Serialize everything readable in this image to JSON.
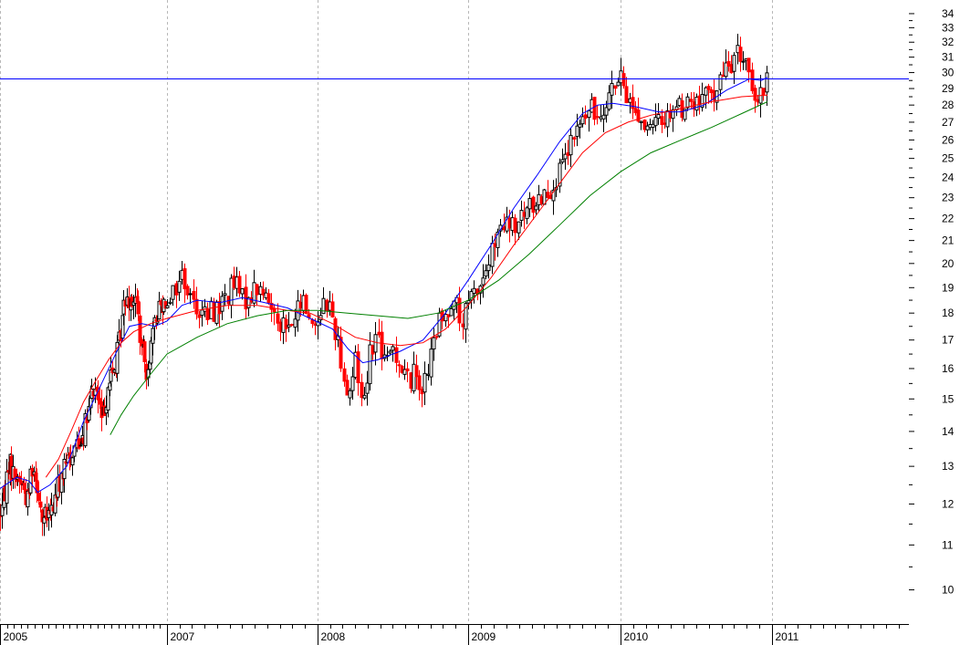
{
  "chart_data": {
    "type": "candlestick",
    "y_scale": "log",
    "ylim": [
      9.3,
      35
    ],
    "y_ticks": [
      10,
      11,
      12,
      13,
      14,
      15,
      16,
      17,
      18,
      19,
      20,
      21,
      22,
      23,
      24,
      25,
      26,
      27,
      28,
      29,
      30,
      31,
      32,
      33,
      34
    ],
    "y_tick_labels": [
      "10",
      "11",
      "12",
      "13",
      "14",
      "15",
      "16",
      "17",
      "18",
      "19",
      "20",
      "21",
      "22",
      "23",
      "24",
      "25",
      "26",
      "27",
      "28",
      "29",
      "30",
      "31",
      "32",
      "33",
      "34"
    ],
    "xlim": [
      2005.0,
      2011.9
    ],
    "x_ticks": [
      2005,
      2007,
      2008,
      2009,
      2010,
      2011
    ],
    "x_tick_labels": [
      "2005",
      "2007",
      "2008",
      "2009",
      "2010",
      "2011"
    ],
    "grid": {
      "vertical_dashed": true,
      "horizontal": false
    },
    "reference_line": {
      "value": 29.6,
      "color": "#0000ff"
    },
    "colors": {
      "up": "#000000",
      "down": "#ff0000",
      "ma_fast": "#0000ff",
      "ma_mid": "#ff0000",
      "ma_slow": "#008000",
      "grid": "#b8b8b8"
    },
    "price_path": [
      [
        2005.0,
        11.8
      ],
      [
        2005.05,
        12.2
      ],
      [
        2005.1,
        13.2
      ],
      [
        2005.15,
        12.8
      ],
      [
        2005.25,
        12.6
      ],
      [
        2005.33,
        12.1
      ],
      [
        2005.38,
        13.1
      ],
      [
        2005.45,
        12.5
      ],
      [
        2005.5,
        11.6
      ],
      [
        2005.6,
        11.7
      ],
      [
        2005.7,
        12.5
      ],
      [
        2005.8,
        13.1
      ],
      [
        2005.9,
        13.6
      ],
      [
        2006.0,
        14.0
      ],
      [
        2006.05,
        14.5
      ],
      [
        2006.1,
        15.2
      ],
      [
        2006.15,
        15.3
      ],
      [
        2006.22,
        14.3
      ],
      [
        2006.3,
        15.6
      ],
      [
        2006.38,
        16.0
      ],
      [
        2006.45,
        17.5
      ],
      [
        2006.5,
        18.7
      ],
      [
        2006.6,
        18.6
      ],
      [
        2006.65,
        18.1
      ],
      [
        2006.68,
        16.8
      ],
      [
        2006.75,
        16.0
      ],
      [
        2006.8,
        16.7
      ],
      [
        2006.85,
        17.5
      ],
      [
        2006.9,
        18.3
      ],
      [
        2006.97,
        18.5
      ],
      [
        2007.05,
        18.9
      ],
      [
        2007.1,
        19.6
      ],
      [
        2007.15,
        18.6
      ],
      [
        2007.25,
        17.9
      ],
      [
        2007.35,
        18.3
      ],
      [
        2007.45,
        19.2
      ],
      [
        2007.5,
        18.5
      ],
      [
        2007.6,
        19.0
      ],
      [
        2007.7,
        18.2
      ],
      [
        2007.8,
        17.3
      ],
      [
        2007.9,
        18.5
      ],
      [
        2007.97,
        17.5
      ],
      [
        2008.05,
        18.6
      ],
      [
        2008.1,
        17.8
      ],
      [
        2008.15,
        16.5
      ],
      [
        2008.2,
        15.0
      ],
      [
        2008.25,
        16.3
      ],
      [
        2008.3,
        14.8
      ],
      [
        2008.35,
        16.8
      ],
      [
        2008.4,
        17.2
      ],
      [
        2008.45,
        16.0
      ],
      [
        2008.5,
        16.8
      ],
      [
        2008.55,
        16.1
      ],
      [
        2008.6,
        15.6
      ],
      [
        2008.65,
        15.9
      ],
      [
        2008.7,
        15.3
      ],
      [
        2008.75,
        16.4
      ],
      [
        2008.8,
        17.6
      ],
      [
        2008.85,
        17.8
      ],
      [
        2008.9,
        18.9
      ],
      [
        2008.95,
        17.4
      ],
      [
        2009.0,
        18.3
      ],
      [
        2009.05,
        18.9
      ],
      [
        2009.1,
        19.4
      ],
      [
        2009.15,
        20.4
      ],
      [
        2009.2,
        21.2
      ],
      [
        2009.25,
        21.7
      ],
      [
        2009.3,
        21.5
      ],
      [
        2009.4,
        22.5
      ],
      [
        2009.5,
        23.3
      ],
      [
        2009.55,
        23.6
      ],
      [
        2009.6,
        24.2
      ],
      [
        2009.65,
        25.2
      ],
      [
        2009.7,
        26.3
      ],
      [
        2009.75,
        27.2
      ],
      [
        2009.8,
        27.7
      ],
      [
        2009.85,
        27.4
      ],
      [
        2009.9,
        28.4
      ],
      [
        2009.95,
        29.2
      ],
      [
        2010.0,
        29.4
      ],
      [
        2010.05,
        28.4
      ],
      [
        2010.1,
        27.6
      ],
      [
        2010.15,
        26.9
      ],
      [
        2010.2,
        26.3
      ],
      [
        2010.25,
        27.2
      ],
      [
        2010.3,
        27.3
      ],
      [
        2010.35,
        28.0
      ],
      [
        2010.4,
        27.8
      ],
      [
        2010.45,
        28.2
      ],
      [
        2010.5,
        28.0
      ],
      [
        2010.55,
        28.4
      ],
      [
        2010.6,
        28.7
      ],
      [
        2010.65,
        29.3
      ],
      [
        2010.7,
        30.4
      ],
      [
        2010.75,
        30.9
      ],
      [
        2010.8,
        31.2
      ],
      [
        2010.85,
        30.4
      ],
      [
        2010.88,
        27.6
      ],
      [
        2010.92,
        28.3
      ],
      [
        2010.95,
        29.2
      ],
      [
        2010.97,
        30.8
      ]
    ],
    "ma_fast": [
      [
        2005.0,
        12.4
      ],
      [
        2005.2,
        12.7
      ],
      [
        2005.35,
        12.6
      ],
      [
        2005.45,
        12.3
      ],
      [
        2005.6,
        12.5
      ],
      [
        2005.8,
        13.0
      ],
      [
        2006.0,
        14.3
      ],
      [
        2006.2,
        15.4
      ],
      [
        2006.4,
        16.6
      ],
      [
        2006.55,
        17.5
      ],
      [
        2006.7,
        17.6
      ],
      [
        2006.85,
        17.5
      ],
      [
        2007.0,
        17.7
      ],
      [
        2007.1,
        18.3
      ],
      [
        2007.2,
        18.5
      ],
      [
        2007.35,
        18.4
      ],
      [
        2007.5,
        18.6
      ],
      [
        2007.65,
        18.4
      ],
      [
        2007.8,
        18.2
      ],
      [
        2007.95,
        17.8
      ],
      [
        2008.1,
        17.4
      ],
      [
        2008.2,
        16.7
      ],
      [
        2008.3,
        16.2
      ],
      [
        2008.4,
        16.3
      ],
      [
        2008.55,
        16.6
      ],
      [
        2008.7,
        17.0
      ],
      [
        2008.85,
        18.0
      ],
      [
        2009.0,
        19.3
      ],
      [
        2009.15,
        20.8
      ],
      [
        2009.3,
        22.5
      ],
      [
        2009.45,
        24.1
      ],
      [
        2009.6,
        25.9
      ],
      [
        2009.75,
        27.5
      ],
      [
        2009.85,
        28.0
      ],
      [
        2009.95,
        28.1
      ],
      [
        2010.1,
        27.9
      ],
      [
        2010.25,
        27.6
      ],
      [
        2010.4,
        27.6
      ],
      [
        2010.55,
        28.0
      ],
      [
        2010.7,
        28.9
      ],
      [
        2010.85,
        29.6
      ],
      [
        2010.93,
        29.5
      ],
      [
        2010.97,
        29.7
      ]
    ],
    "ma_mid": [
      [
        2005.55,
        12.7
      ],
      [
        2005.7,
        13.2
      ],
      [
        2005.85,
        14.0
      ],
      [
        2006.0,
        14.9
      ],
      [
        2006.15,
        15.6
      ],
      [
        2006.3,
        16.3
      ],
      [
        2006.45,
        16.9
      ],
      [
        2006.6,
        17.3
      ],
      [
        2006.8,
        17.6
      ],
      [
        2007.0,
        17.8
      ],
      [
        2007.2,
        18.1
      ],
      [
        2007.4,
        18.3
      ],
      [
        2007.6,
        18.3
      ],
      [
        2007.8,
        18.1
      ],
      [
        2007.95,
        18.0
      ],
      [
        2008.1,
        17.6
      ],
      [
        2008.25,
        17.1
      ],
      [
        2008.4,
        16.9
      ],
      [
        2008.55,
        16.8
      ],
      [
        2008.7,
        16.9
      ],
      [
        2008.85,
        17.4
      ],
      [
        2009.0,
        18.3
      ],
      [
        2009.15,
        19.4
      ],
      [
        2009.3,
        20.8
      ],
      [
        2009.45,
        22.2
      ],
      [
        2009.6,
        23.7
      ],
      [
        2009.75,
        25.3
      ],
      [
        2009.9,
        26.4
      ],
      [
        2010.05,
        27.0
      ],
      [
        2010.2,
        27.4
      ],
      [
        2010.4,
        27.8
      ],
      [
        2010.6,
        28.2
      ],
      [
        2010.8,
        28.5
      ],
      [
        2010.97,
        28.6
      ]
    ],
    "ma_slow": [
      [
        2006.32,
        13.9
      ],
      [
        2006.45,
        14.5
      ],
      [
        2006.6,
        15.1
      ],
      [
        2006.8,
        15.8
      ],
      [
        2007.0,
        16.5
      ],
      [
        2007.2,
        17.1
      ],
      [
        2007.4,
        17.6
      ],
      [
        2007.6,
        17.9
      ],
      [
        2007.8,
        18.1
      ],
      [
        2008.0,
        18.1
      ],
      [
        2008.2,
        18.0
      ],
      [
        2008.4,
        17.9
      ],
      [
        2008.6,
        17.8
      ],
      [
        2008.8,
        18.0
      ],
      [
        2009.0,
        18.5
      ],
      [
        2009.2,
        19.3
      ],
      [
        2009.4,
        20.4
      ],
      [
        2009.6,
        21.7
      ],
      [
        2009.8,
        23.1
      ],
      [
        2010.0,
        24.3
      ],
      [
        2010.2,
        25.3
      ],
      [
        2010.4,
        26.0
      ],
      [
        2010.6,
        26.7
      ],
      [
        2010.8,
        27.5
      ],
      [
        2010.97,
        28.2
      ]
    ]
  }
}
